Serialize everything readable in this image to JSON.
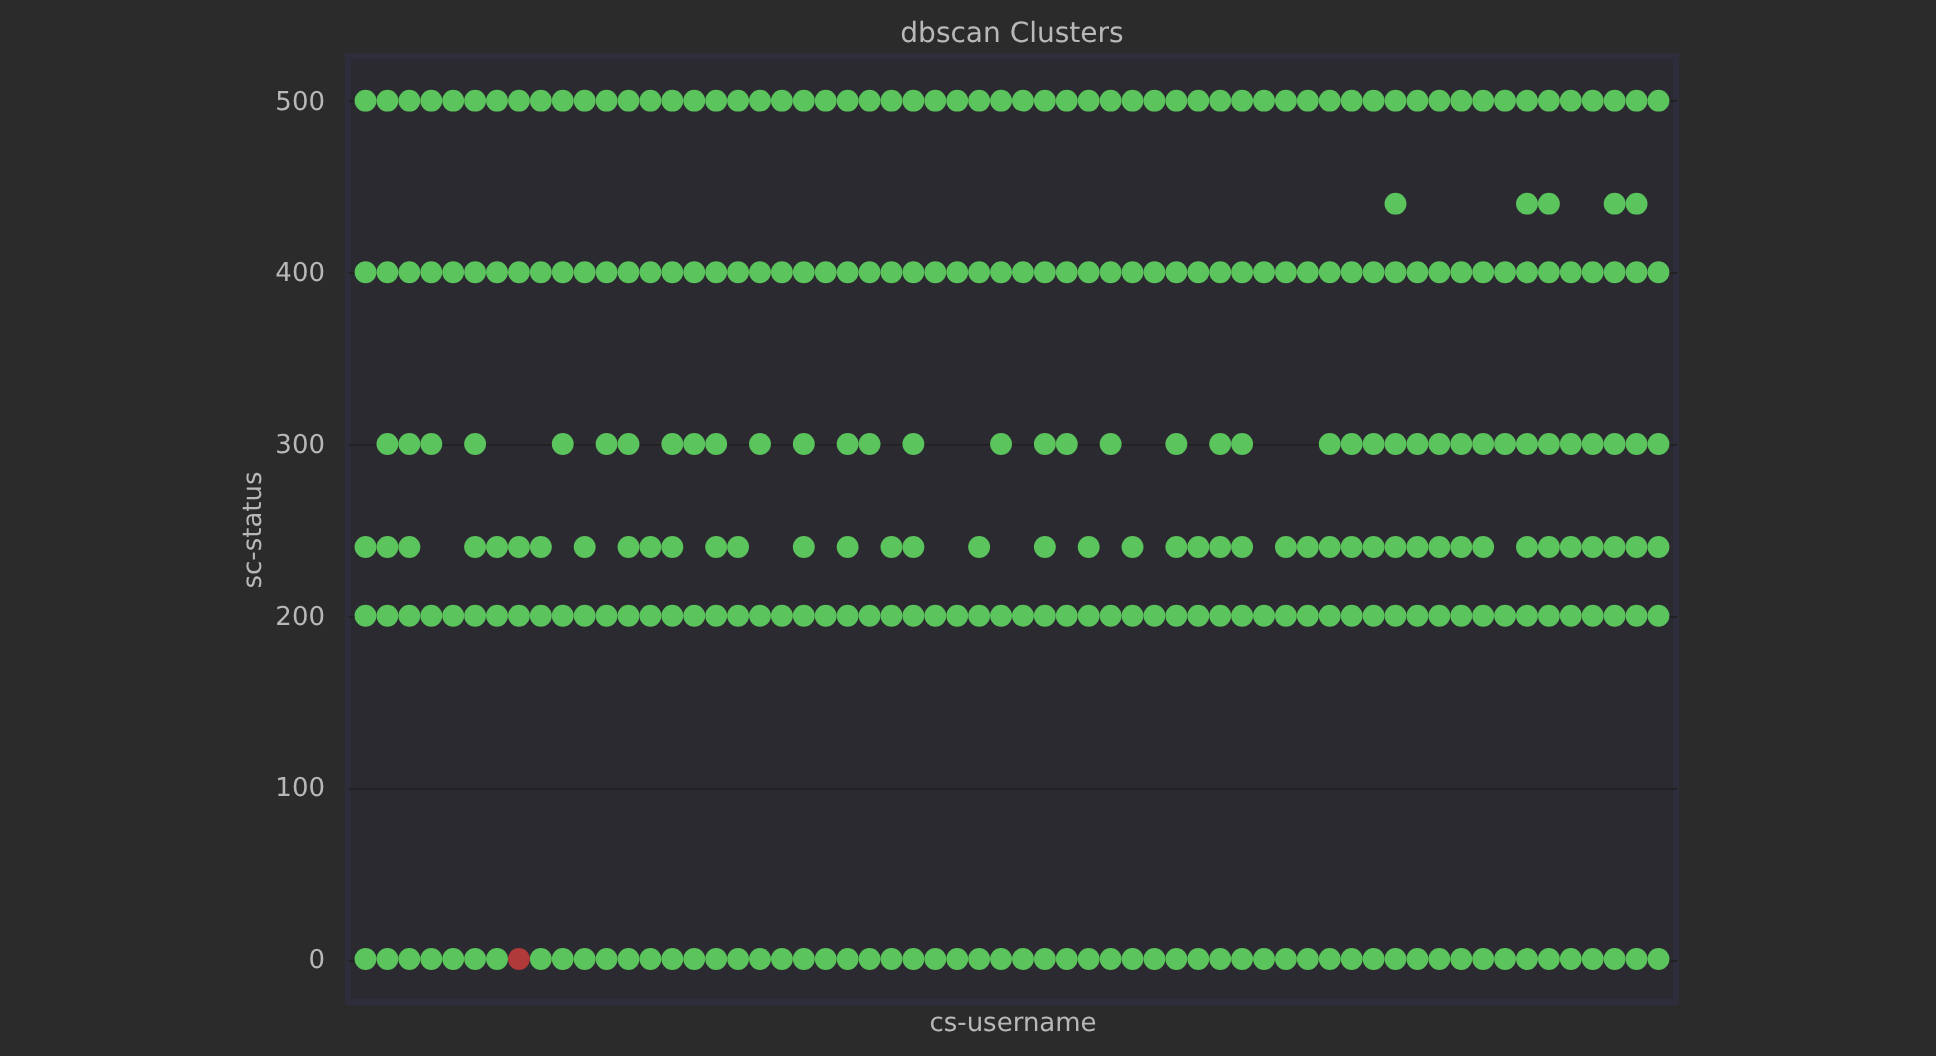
{
  "chart_data": {
    "type": "scatter",
    "title": "dbscan Clusters",
    "xlabel": "cs-username",
    "ylabel": "sc-status",
    "categories": [
      null,
      null,
      null,
      null,
      null,
      null,
      null,
      null,
      null,
      null,
      null,
      null,
      null,
      null,
      null,
      null,
      null,
      null,
      null,
      null,
      null,
      null,
      null,
      null,
      null,
      null,
      null,
      null,
      null,
      null,
      null,
      null,
      null,
      null,
      null,
      null,
      null,
      null,
      null,
      null,
      null,
      null,
      null,
      null,
      null,
      null,
      null,
      null,
      null,
      null,
      null,
      null,
      null,
      null,
      null,
      null,
      null,
      null,
      null,
      null
    ],
    "series": [
      {
        "color": "#5cc45c",
        "values": [
          500,
          500,
          500,
          500,
          500,
          500,
          500,
          500,
          500,
          500,
          500,
          500,
          500,
          500,
          500,
          500,
          500,
          500,
          500,
          500,
          500,
          500,
          500,
          500,
          500,
          500,
          500,
          500,
          500,
          500,
          500,
          500,
          500,
          500,
          500,
          500,
          500,
          500,
          500,
          500,
          500,
          500,
          500,
          500,
          500,
          500,
          500,
          500,
          500,
          500,
          500,
          500,
          500,
          500,
          500,
          500,
          500,
          500,
          500,
          500
        ]
      },
      {
        "color": "#5cc45c",
        "values": [
          null,
          null,
          null,
          null,
          null,
          null,
          null,
          null,
          null,
          null,
          null,
          null,
          null,
          null,
          null,
          null,
          null,
          null,
          null,
          null,
          null,
          null,
          null,
          null,
          null,
          null,
          null,
          null,
          null,
          null,
          null,
          null,
          null,
          null,
          null,
          null,
          null,
          null,
          null,
          null,
          null,
          null,
          null,
          null,
          null,
          null,
          null,
          440,
          null,
          null,
          null,
          null,
          null,
          440,
          440,
          null,
          null,
          440,
          440,
          null
        ]
      },
      {
        "color": "#5cc45c",
        "values": [
          400,
          400,
          400,
          400,
          400,
          400,
          400,
          400,
          400,
          400,
          400,
          400,
          400,
          400,
          400,
          400,
          400,
          400,
          400,
          400,
          400,
          400,
          400,
          400,
          400,
          400,
          400,
          400,
          400,
          400,
          400,
          400,
          400,
          400,
          400,
          400,
          400,
          400,
          400,
          400,
          400,
          400,
          400,
          400,
          400,
          400,
          400,
          400,
          400,
          400,
          400,
          400,
          400,
          400,
          400,
          400,
          400,
          400,
          400,
          400
        ]
      },
      {
        "color": "#5cc45c",
        "values": [
          null,
          300,
          300,
          300,
          null,
          300,
          null,
          null,
          null,
          300,
          null,
          300,
          300,
          null,
          300,
          300,
          300,
          null,
          300,
          null,
          300,
          null,
          300,
          300,
          null,
          300,
          null,
          null,
          null,
          300,
          null,
          300,
          300,
          null,
          300,
          null,
          null,
          300,
          null,
          300,
          300,
          null,
          null,
          null,
          300,
          300,
          300,
          300,
          300,
          300,
          300,
          300,
          300,
          300,
          300,
          300,
          300,
          300,
          300,
          300
        ]
      },
      {
        "color": "#5cc45c",
        "values": [
          240,
          240,
          240,
          null,
          null,
          240,
          240,
          240,
          240,
          null,
          240,
          null,
          240,
          240,
          240,
          null,
          240,
          240,
          null,
          null,
          240,
          null,
          240,
          null,
          240,
          240,
          null,
          null,
          240,
          null,
          null,
          240,
          null,
          240,
          null,
          240,
          null,
          240,
          240,
          240,
          240,
          null,
          240,
          240,
          240,
          240,
          240,
          240,
          240,
          240,
          240,
          240,
          null,
          240,
          240,
          240,
          240,
          240,
          240,
          240
        ]
      },
      {
        "color": "#5cc45c",
        "values": [
          200,
          200,
          200,
          200,
          200,
          200,
          200,
          200,
          200,
          200,
          200,
          200,
          200,
          200,
          200,
          200,
          200,
          200,
          200,
          200,
          200,
          200,
          200,
          200,
          200,
          200,
          200,
          200,
          200,
          200,
          200,
          200,
          200,
          200,
          200,
          200,
          200,
          200,
          200,
          200,
          200,
          200,
          200,
          200,
          200,
          200,
          200,
          200,
          200,
          200,
          200,
          200,
          200,
          200,
          200,
          200,
          200,
          200,
          200,
          200
        ]
      },
      {
        "color": "#5cc45c",
        "values": [
          0,
          0,
          0,
          0,
          0,
          0,
          0,
          null,
          0,
          0,
          0,
          0,
          0,
          0,
          0,
          0,
          0,
          0,
          0,
          0,
          0,
          0,
          0,
          0,
          0,
          0,
          0,
          0,
          0,
          0,
          0,
          0,
          0,
          0,
          0,
          0,
          0,
          0,
          0,
          0,
          0,
          0,
          0,
          0,
          0,
          0,
          0,
          0,
          0,
          0,
          0,
          0,
          0,
          0,
          0,
          0,
          0,
          0,
          0,
          0
        ]
      },
      {
        "color": "#b03a3a",
        "values": [
          null,
          null,
          null,
          null,
          null,
          null,
          null,
          0,
          null,
          null,
          null,
          null,
          null,
          null,
          null,
          null,
          null,
          null,
          null,
          null,
          null,
          null,
          null,
          null,
          null,
          null,
          null,
          null,
          null,
          null,
          null,
          null,
          null,
          null,
          null,
          null,
          null,
          null,
          null,
          null,
          null,
          null,
          null,
          null,
          null,
          null,
          null,
          null,
          null,
          null,
          null,
          null,
          null,
          null,
          null,
          null,
          null,
          null,
          null,
          null
        ]
      }
    ],
    "ylim": [
      -25,
      526
    ],
    "yticks": [
      0,
      100,
      200,
      300,
      400,
      500
    ],
    "grid": "y",
    "marker": "circle",
    "tick_labels": "y"
  }
}
